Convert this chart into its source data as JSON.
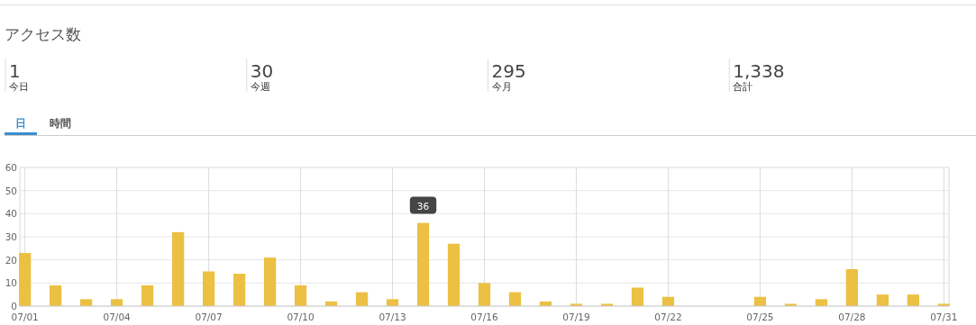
{
  "chart_data": [
    {
      "type": "other",
      "title": "アクセス数",
      "categories": [
        "今日",
        "今週",
        "今月",
        "合計"
      ],
      "values": [
        1,
        30,
        295,
        1338
      ],
      "value_labels": [
        "1",
        "30",
        "295",
        "1,338"
      ]
    },
    {
      "type": "bar",
      "annotations": [
        "日",
        "時間",
        {
          "text": "36",
          "x": "--07-14",
          "y": 36
        }
      ],
      "x": [
        "--07-01",
        "--07-02",
        "--07-03",
        "--07-04",
        "--07-05",
        "--07-06",
        "--07-07",
        "--07-08",
        "--07-09",
        "--07-10",
        "--07-11",
        "--07-12",
        "--07-13",
        "--07-14",
        "--07-15",
        "--07-16",
        "--07-17",
        "--07-18",
        "--07-19",
        "--07-20",
        "--07-21",
        "--07-22",
        "--07-23",
        "--07-24",
        "--07-25",
        "--07-26",
        "--07-27",
        "--07-28",
        "--07-29",
        "--07-30",
        "--07-31"
      ],
      "values": [
        23,
        9,
        3,
        3,
        9,
        32,
        15,
        14,
        21,
        9,
        2,
        6,
        3,
        36,
        27,
        10,
        6,
        2,
        1,
        1,
        8,
        4,
        0,
        0,
        4,
        1,
        3,
        16,
        5,
        5,
        1
      ],
      "color": "#ebc043",
      "xlim": [
        "--06-30T20:00",
        "--07-31T04:00"
      ],
      "xticks": [
        {
          "value": "--07-01",
          "label": "07/01"
        },
        {
          "value": "--07-04",
          "label": "07/04"
        },
        {
          "value": "--07-07",
          "label": "07/07"
        },
        {
          "value": "--07-10",
          "label": "07/10"
        },
        {
          "value": "--07-13",
          "label": "07/13"
        },
        {
          "value": "--07-16",
          "label": "07/16"
        },
        {
          "value": "--07-19",
          "label": "07/19"
        },
        {
          "value": "--07-22",
          "label": "07/22"
        },
        {
          "value": "--07-25",
          "label": "07/25"
        },
        {
          "value": "--07-28",
          "label": "07/28"
        },
        {
          "value": "--07-31",
          "label": "07/31"
        }
      ],
      "ylim": [
        0,
        60
      ],
      "yticks": [
        0,
        10,
        20,
        30,
        40,
        50,
        60
      ],
      "grid": true
    }
  ]
}
